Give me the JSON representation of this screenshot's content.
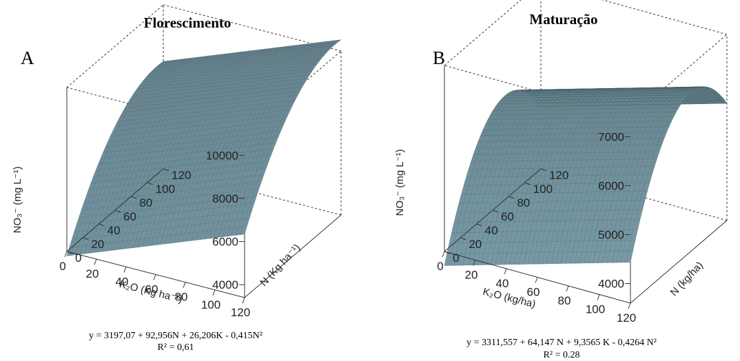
{
  "chart_data": [
    {
      "type": "surface",
      "panel_letter": "A",
      "title": "Florescimento",
      "z_label": "NO₃⁻ (mg L⁻¹)",
      "x_label": "K₂O (Kg ha⁻¹)",
      "y_label": "N (Kg ha⁻¹)",
      "z_ticks": [
        "4000",
        "6000",
        "8000",
        "10000"
      ],
      "x_ticks": [
        "120",
        "100",
        "80",
        "60",
        "40",
        "20",
        "0"
      ],
      "y_ticks": [
        "0",
        "20",
        "40",
        "60",
        "80",
        "100",
        "120"
      ],
      "x_range": [
        0,
        120
      ],
      "y_range": [
        0,
        120
      ],
      "z_range": [
        3400,
        11000
      ],
      "coefficients": {
        "intercept": 3197.07,
        "N": 92.956,
        "K": 26.206,
        "N2": -0.415,
        "K2": 0
      },
      "equation": "y = 3197,07 + 92,956N + 26,206K - 0,415N²",
      "r2_text": "R² = 0,61",
      "surface_color": "#6e8d99"
    },
    {
      "type": "surface",
      "panel_letter": "B",
      "title": "Maturação",
      "z_label": "NO₃⁻ (mg L⁻¹)",
      "x_label": "K₂O (kg/ha)",
      "y_label": "N (kg/ha)",
      "z_ticks": [
        "4000",
        "5000",
        "6000",
        "7000"
      ],
      "x_ticks": [
        "120",
        "100",
        "80",
        "60",
        "40",
        "20",
        "0"
      ],
      "y_ticks": [
        "0",
        "20",
        "40",
        "60",
        "80",
        "100",
        "120"
      ],
      "x_range": [
        0,
        120
      ],
      "y_range": [
        0,
        120
      ],
      "z_range": [
        3600,
        7400
      ],
      "coefficients": {
        "intercept": 3311.557,
        "N": 64.147,
        "K": 9.3565,
        "N2": -0.4264,
        "K2": 0
      },
      "equation": "y = 3311,557 + 64,147 N + 9,3565 K - 0,4264 N²",
      "r2_text": "R² = 0.28",
      "surface_color": "#6e8d99"
    }
  ]
}
